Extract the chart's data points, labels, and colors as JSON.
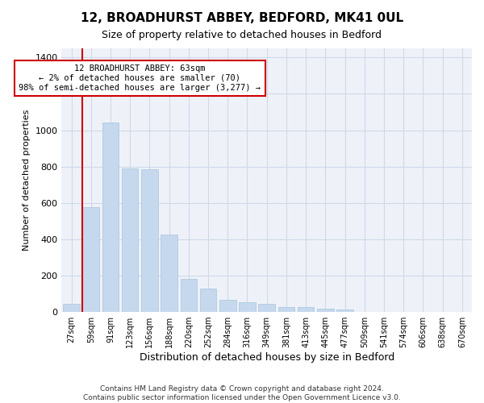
{
  "title": "12, BROADHURST ABBEY, BEDFORD, MK41 0UL",
  "subtitle": "Size of property relative to detached houses in Bedford",
  "xlabel": "Distribution of detached houses by size in Bedford",
  "ylabel": "Number of detached properties",
  "bar_color": "#c5d8ed",
  "bar_edge_color": "#a8c4dc",
  "background_color": "#eef2f8",
  "grid_color": "#d0d8e8",
  "annotation_box_edgecolor": "#cc0000",
  "vline_color": "#cc0000",
  "annotation_line1": "12 BROADHURST ABBEY: 63sqm",
  "annotation_line2": "← 2% of detached houses are smaller (70)",
  "annotation_line3": "98% of semi-detached houses are larger (3,277) →",
  "categories": [
    "27sqm",
    "59sqm",
    "91sqm",
    "123sqm",
    "156sqm",
    "188sqm",
    "220sqm",
    "252sqm",
    "284sqm",
    "316sqm",
    "349sqm",
    "381sqm",
    "413sqm",
    "445sqm",
    "477sqm",
    "509sqm",
    "541sqm",
    "574sqm",
    "606sqm",
    "638sqm",
    "670sqm"
  ],
  "values": [
    45,
    575,
    1040,
    790,
    785,
    425,
    180,
    130,
    65,
    55,
    45,
    27,
    27,
    20,
    13,
    0,
    0,
    0,
    0,
    0,
    0
  ],
  "ylim": [
    0,
    1450
  ],
  "yticks": [
    0,
    200,
    400,
    600,
    800,
    1000,
    1200,
    1400
  ],
  "footer1": "Contains HM Land Registry data © Crown copyright and database right 2024.",
  "footer2": "Contains public sector information licensed under the Open Government Licence v3.0."
}
